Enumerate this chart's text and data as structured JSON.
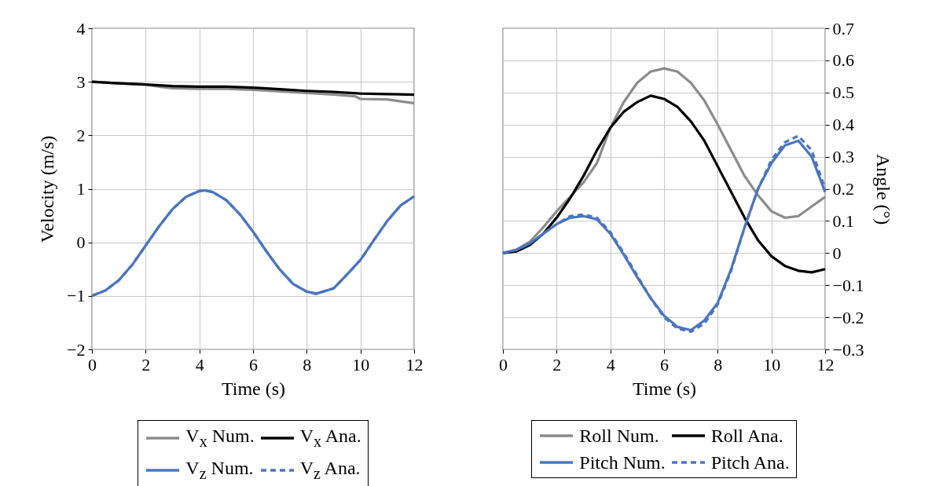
{
  "chart_data": [
    {
      "type": "line",
      "xlabel": "Time (s)",
      "ylabel": "Velocity (m/s)",
      "xlim": [
        0,
        12
      ],
      "xticks": [
        0,
        2,
        4,
        6,
        8,
        10,
        12
      ],
      "ylim": [
        -2,
        4
      ],
      "yticks": [
        -2,
        -1,
        0,
        1,
        2,
        3,
        4
      ],
      "grid": true,
      "legend": "bottom",
      "series": [
        {
          "name": "V$_{x}$ Num.",
          "color": "#8c8c8c",
          "x": [
            0,
            1,
            2,
            2.5,
            3,
            4,
            5,
            6,
            7,
            8,
            9,
            9.8,
            10,
            11,
            12
          ],
          "values": [
            3.0,
            2.97,
            2.95,
            2.91,
            2.88,
            2.87,
            2.87,
            2.85,
            2.82,
            2.79,
            2.76,
            2.73,
            2.68,
            2.67,
            2.6
          ]
        },
        {
          "name": "V$_{x}$ Ana.",
          "color": "#000000",
          "x": [
            0,
            1,
            2,
            3,
            4,
            5,
            6,
            7,
            8,
            9,
            10,
            11,
            12
          ],
          "values": [
            3.0,
            2.97,
            2.95,
            2.92,
            2.91,
            2.91,
            2.89,
            2.86,
            2.83,
            2.81,
            2.78,
            2.77,
            2.76
          ]
        },
        {
          "name": "V$_{z}$ Num.",
          "color": "#4a76c0",
          "x": [
            0,
            0.5,
            1,
            1.5,
            2,
            2.5,
            3,
            3.5,
            4,
            4.2,
            4.5,
            5,
            5.5,
            6,
            6.5,
            7,
            7.5,
            8,
            8.35,
            9,
            9.5,
            10,
            10.5,
            11,
            11.5,
            12
          ],
          "values": [
            -1.0,
            -0.9,
            -0.71,
            -0.42,
            -0.06,
            0.3,
            0.62,
            0.85,
            0.96,
            0.97,
            0.94,
            0.79,
            0.53,
            0.2,
            -0.17,
            -0.51,
            -0.78,
            -0.92,
            -0.96,
            -0.86,
            -0.6,
            -0.33,
            0.04,
            0.4,
            0.69,
            0.86
          ]
        },
        {
          "name": "V$_{z}$ Ana.",
          "color": "#4a76c0",
          "line_style": "dashed",
          "x": [
            0,
            0.5,
            1,
            1.5,
            2,
            2.5,
            3,
            3.5,
            4,
            4.2,
            4.5,
            5,
            5.5,
            6,
            6.5,
            7,
            7.5,
            8,
            8.35,
            9,
            9.5,
            10,
            10.5,
            11,
            11.5,
            12
          ],
          "values": [
            -1.0,
            -0.9,
            -0.71,
            -0.42,
            -0.06,
            0.3,
            0.62,
            0.85,
            0.96,
            0.97,
            0.94,
            0.79,
            0.53,
            0.2,
            -0.17,
            -0.51,
            -0.78,
            -0.92,
            -0.96,
            -0.86,
            -0.6,
            -0.33,
            0.04,
            0.4,
            0.69,
            0.86
          ]
        }
      ]
    },
    {
      "type": "line",
      "xlabel": "Time (s)",
      "y2label": "Angle (°)",
      "xlim": [
        0,
        12
      ],
      "xticks": [
        0,
        2,
        4,
        6,
        8,
        10,
        12
      ],
      "y2lim": [
        -0.3,
        0.7
      ],
      "y2ticks": [
        -0.3,
        -0.2,
        -0.1,
        0,
        0.1,
        0.2,
        0.3,
        0.4,
        0.5,
        0.6,
        0.7
      ],
      "grid": true,
      "legend": "bottom",
      "series": [
        {
          "name": "Roll Num.",
          "color": "#8c8c8c",
          "axis": "y2",
          "x": [
            0,
            0.5,
            1,
            1.5,
            2,
            2.5,
            3,
            3.5,
            4,
            4.5,
            5,
            5.5,
            6,
            6.5,
            7,
            7.5,
            8,
            8.5,
            9,
            9.5,
            10,
            10.5,
            11,
            11.5,
            12
          ],
          "values": [
            0,
            0.01,
            0.035,
            0.08,
            0.13,
            0.175,
            0.22,
            0.28,
            0.39,
            0.47,
            0.53,
            0.565,
            0.575,
            0.565,
            0.53,
            0.475,
            0.4,
            0.32,
            0.24,
            0.18,
            0.13,
            0.11,
            0.115,
            0.145,
            0.175
          ]
        },
        {
          "name": "Roll Ana.",
          "color": "#000000",
          "axis": "y2",
          "x": [
            0,
            0.5,
            1,
            1.5,
            2,
            2.5,
            3,
            3.5,
            4,
            4.5,
            5,
            5.5,
            6,
            6.5,
            7,
            7.5,
            8,
            8.5,
            9,
            9.5,
            10,
            10.5,
            11,
            11.5,
            12
          ],
          "values": [
            0,
            0.005,
            0.025,
            0.06,
            0.11,
            0.17,
            0.24,
            0.32,
            0.39,
            0.44,
            0.47,
            0.49,
            0.48,
            0.455,
            0.41,
            0.35,
            0.27,
            0.19,
            0.11,
            0.04,
            -0.01,
            -0.04,
            -0.055,
            -0.06,
            -0.05
          ]
        },
        {
          "name": "Pitch Num.",
          "color": "#4a76c0",
          "axis": "y2",
          "x": [
            0,
            0.5,
            1,
            1.5,
            2,
            2.5,
            3,
            3.5,
            4,
            4.5,
            5,
            5.5,
            6,
            6.5,
            7,
            7.5,
            8,
            8.5,
            9,
            9.5,
            10,
            10.5,
            11,
            11.5,
            12
          ],
          "values": [
            0,
            0.01,
            0.03,
            0.06,
            0.09,
            0.11,
            0.115,
            0.105,
            0.06,
            -0.005,
            -0.075,
            -0.14,
            -0.195,
            -0.23,
            -0.24,
            -0.21,
            -0.155,
            -0.05,
            0.08,
            0.2,
            0.28,
            0.335,
            0.35,
            0.3,
            0.19
          ]
        },
        {
          "name": "Pitch Ana.",
          "color": "#4a76c0",
          "axis": "y2",
          "line_style": "dashed",
          "x": [
            0,
            0.5,
            1,
            1.5,
            2,
            2.5,
            3,
            3.5,
            4,
            4.5,
            5,
            5.5,
            6,
            6.5,
            7,
            7.5,
            8,
            8.5,
            9,
            9.5,
            10,
            10.5,
            11,
            11.5,
            12
          ],
          "values": [
            0,
            0.01,
            0.03,
            0.06,
            0.09,
            0.115,
            0.12,
            0.11,
            0.065,
            0,
            -0.07,
            -0.14,
            -0.2,
            -0.235,
            -0.245,
            -0.22,
            -0.16,
            -0.055,
            0.08,
            0.2,
            0.29,
            0.345,
            0.365,
            0.32,
            0.2
          ]
        }
      ]
    }
  ]
}
